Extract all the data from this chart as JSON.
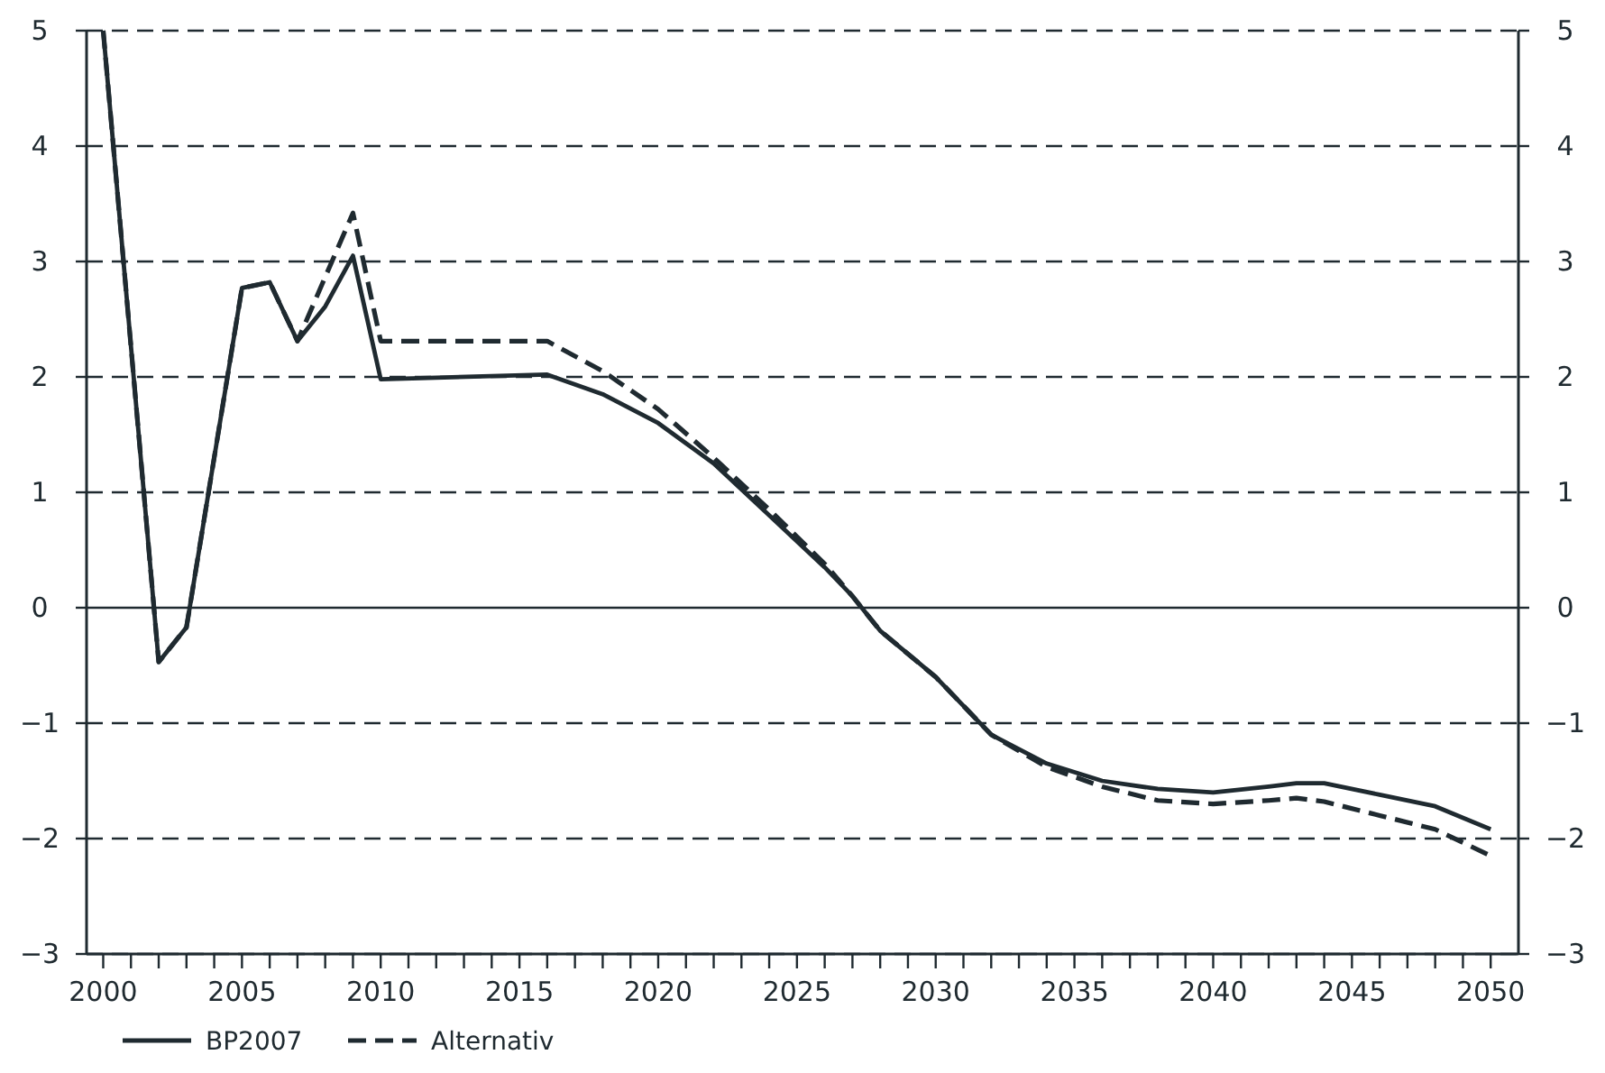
{
  "chart_data": {
    "type": "line",
    "xlim": [
      1999.4,
      2051
    ],
    "xticks": [
      2000,
      {
        "value": 2001,
        "label": null
      },
      {
        "value": 2002,
        "label": null
      },
      {
        "value": 2003,
        "label": null
      },
      {
        "value": 2004,
        "label": null
      },
      2005,
      {
        "value": 2006,
        "label": null
      },
      {
        "value": 2007,
        "label": null
      },
      {
        "value": 2008,
        "label": null
      },
      {
        "value": 2009,
        "label": null
      },
      2010,
      {
        "value": 2011,
        "label": null
      },
      {
        "value": 2012,
        "label": null
      },
      {
        "value": 2013,
        "label": null
      },
      {
        "value": 2014,
        "label": null
      },
      2015,
      {
        "value": 2016,
        "label": null
      },
      {
        "value": 2017,
        "label": null
      },
      {
        "value": 2018,
        "label": null
      },
      {
        "value": 2019,
        "label": null
      },
      2020,
      {
        "value": 2021,
        "label": null
      },
      {
        "value": 2022,
        "label": null
      },
      {
        "value": 2023,
        "label": null
      },
      {
        "value": 2024,
        "label": null
      },
      2025,
      {
        "value": 2026,
        "label": null
      },
      {
        "value": 2027,
        "label": null
      },
      {
        "value": 2028,
        "label": null
      },
      {
        "value": 2029,
        "label": null
      },
      2030,
      {
        "value": 2031,
        "label": null
      },
      {
        "value": 2032,
        "label": null
      },
      {
        "value": 2033,
        "label": null
      },
      {
        "value": 2034,
        "label": null
      },
      2035,
      {
        "value": 2036,
        "label": null
      },
      {
        "value": 2037,
        "label": null
      },
      {
        "value": 2038,
        "label": null
      },
      {
        "value": 2039,
        "label": null
      },
      2040,
      {
        "value": 2041,
        "label": null
      },
      {
        "value": 2042,
        "label": null
      },
      {
        "value": 2043,
        "label": null
      },
      {
        "value": 2044,
        "label": null
      },
      2045,
      {
        "value": 2046,
        "label": null
      },
      {
        "value": 2047,
        "label": null
      },
      {
        "value": 2048,
        "label": null
      },
      {
        "value": 2049,
        "label": null
      },
      2050
    ],
    "ylim": [
      -3,
      5
    ],
    "yticks": [
      {
        "value": -3,
        "label": "−3"
      },
      {
        "value": -2,
        "label": "−2"
      },
      {
        "value": -1,
        "label": "−1"
      },
      0,
      1,
      2,
      3,
      4,
      5
    ],
    "y2lim": [
      -3,
      5
    ],
    "y2ticks": [
      {
        "value": -3,
        "label": "−3"
      },
      {
        "value": -2,
        "label": "−2"
      },
      {
        "value": -1,
        "label": "−1"
      },
      0,
      1,
      2,
      3,
      4,
      5
    ],
    "grid": "y",
    "legend": "bottom left",
    "series": [
      {
        "name": "BP2007",
        "color": "#1f2a30",
        "line_style": "solid",
        "x": [
          2000,
          2002,
          2003,
          2005,
          2006,
          2007,
          2008,
          2009,
          2010,
          2016,
          2018,
          2020,
          2022,
          2024,
          2026,
          2027,
          2028,
          2030,
          2032,
          2034,
          2036,
          2038,
          2040,
          2042,
          2043,
          2044,
          2046,
          2048,
          2050
        ],
        "values": [
          5,
          -0.47,
          -0.17,
          2.77,
          2.82,
          2.31,
          2.61,
          3.05,
          1.98,
          2.02,
          1.85,
          1.6,
          1.25,
          0.8,
          0.35,
          0.1,
          -0.2,
          -0.6,
          -1.1,
          -1.35,
          -1.5,
          -1.57,
          -1.6,
          -1.55,
          -1.52,
          -1.52,
          -1.62,
          -1.72,
          -1.92
        ]
      },
      {
        "name": "Alternativ",
        "color": "#1f2a30",
        "line_style": "dashed",
        "x": [
          2000,
          2002,
          2003,
          2005,
          2006,
          2007,
          2009,
          2010,
          2016,
          2018,
          2020,
          2022,
          2024,
          2026,
          2027,
          2028,
          2030,
          2032,
          2034,
          2036,
          2038,
          2040,
          2042,
          2043,
          2044,
          2046,
          2048,
          2050
        ],
        "values": [
          5,
          -0.47,
          -0.17,
          2.77,
          2.82,
          2.31,
          3.42,
          2.31,
          2.31,
          2.05,
          1.72,
          1.3,
          0.85,
          0.38,
          0.1,
          -0.2,
          -0.6,
          -1.1,
          -1.38,
          -1.55,
          -1.67,
          -1.7,
          -1.67,
          -1.65,
          -1.68,
          -1.8,
          -1.92,
          -2.15
        ]
      }
    ]
  }
}
